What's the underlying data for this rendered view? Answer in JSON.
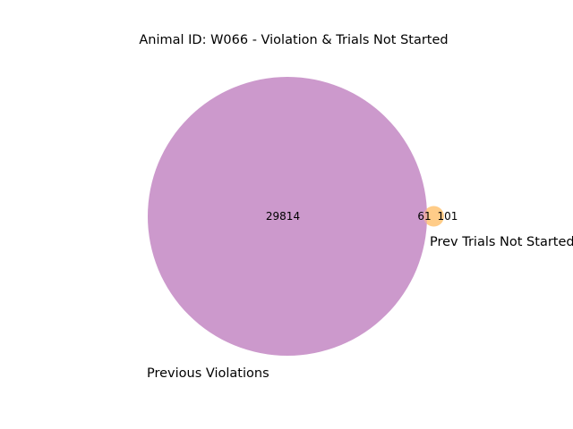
{
  "chart_data": {
    "type": "venn",
    "title": "Animal ID: W066 - Violation & Trials Not Started",
    "sets": [
      {
        "name": "Previous Violations",
        "only": 29814,
        "color": "#cc99cc"
      },
      {
        "name": "Prev Trials Not Started",
        "only": 101,
        "color": "#ffcc88"
      }
    ],
    "intersection": 61,
    "overlap_color": "#e8a8a8"
  }
}
